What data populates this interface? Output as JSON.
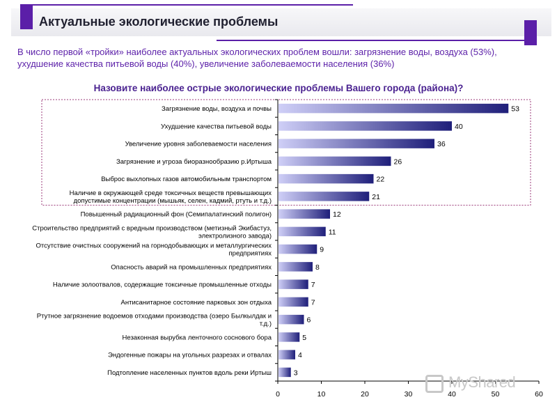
{
  "header": {
    "title": "Актуальные экологические проблемы"
  },
  "intro_text": "В число первой «тройки» наиболее актуальных экологических проблем вошли: загрязнение воды, воздуха (53%), ухудшение качества питьевой воды (40%), увеличение заболеваемости населения (36%)",
  "watermark": "MyShared",
  "colors": {
    "accent": "#5b1fa8",
    "bar_dark": "#1f1f7a",
    "bar_light": "#cfcff7",
    "highlight_border": "#9b3a7a"
  },
  "chart_data": {
    "type": "bar",
    "orientation": "horizontal",
    "title": "Назовите наиболее острые экологические проблемы Вашего города (района)?",
    "xlim": [
      0,
      60
    ],
    "xticks": [
      0,
      10,
      20,
      30,
      40,
      50,
      60
    ],
    "grid": false,
    "highlighted_count": 6,
    "categories": [
      [
        "Загрязнение воды, воздуха и почвы"
      ],
      [
        "Ухудшение качества питьевой воды"
      ],
      [
        "Увеличение уровня заболеваемости населения"
      ],
      [
        "Загрязнение и угроза биоразнообразию р.Иртыша"
      ],
      [
        "Выброс выхлопных газов автомобильным транспортом"
      ],
      [
        "Наличие в окружающей среде токсичных веществ превышающих",
        "допустимые концентрации (мышьяк, селен, кадмий, ртуть и т.д.)"
      ],
      [
        "Повышенный радиационный фон (Семипалатинский полигон)"
      ],
      [
        "Строительство предприятий с вредным производством (метизный Экибастуз,",
        "электролизного завода)"
      ],
      [
        "Отсутствие очистных сооружений на горнодобывающих и металлургических",
        "предприятиях"
      ],
      [
        "Опасность аварий на промышленных предприятиях"
      ],
      [
        "Наличие золоотвалов, содержащие токсичные промышленные отходы"
      ],
      [
        "Антисанитарное состояние парковых зон отдыха"
      ],
      [
        "Ртутное загрязнение водоемов отходами производства (озеро Былкылдак и",
        "т.д.)"
      ],
      [
        "Незаконная вырубка ленточного соснового бора"
      ],
      [
        "Эндогенные пожары на угольных разрезах и отвалах"
      ],
      [
        "Подтопление населенных пунктов вдоль реки Иртыш"
      ]
    ],
    "values": [
      53,
      40,
      36,
      26,
      22,
      21,
      12,
      11,
      9,
      8,
      7,
      7,
      6,
      5,
      4,
      3
    ]
  }
}
